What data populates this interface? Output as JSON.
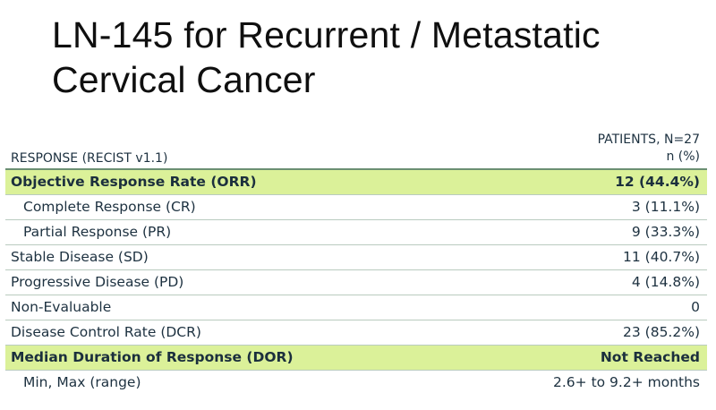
{
  "title": {
    "line1": "LN-145 for Recurrent / Metastatic",
    "line2": "Cervical Cancer"
  },
  "table": {
    "header": {
      "left": "RESPONSE (RECIST v1.1)",
      "right_line1": "PATIENTS, N=27",
      "right_line2": "n (%)"
    },
    "rows": [
      {
        "label": "Objective Response Rate (ORR)",
        "value": "12 (44.4%)",
        "highlight": true,
        "indent": false
      },
      {
        "label": "Complete Response (CR)",
        "value": "3 (11.1%)",
        "highlight": false,
        "indent": true
      },
      {
        "label": "Partial Response (PR)",
        "value": "9 (33.3%)",
        "highlight": false,
        "indent": true
      },
      {
        "label": "Stable Disease (SD)",
        "value": "11 (40.7%)",
        "highlight": false,
        "indent": false
      },
      {
        "label": "Progressive Disease (PD)",
        "value": "4 (14.8%)",
        "highlight": false,
        "indent": false
      },
      {
        "label": "Non-Evaluable",
        "value": "0",
        "highlight": false,
        "indent": false
      },
      {
        "label": "Disease Control Rate (DCR)",
        "value": "23 (85.2%)",
        "highlight": false,
        "indent": false
      },
      {
        "label": "Median Duration of Response (DOR)",
        "value": "Not Reached",
        "highlight": true,
        "indent": false
      },
      {
        "label": "Min, Max (range)",
        "value": "2.6+ to 9.2+ months",
        "highlight": false,
        "indent": true
      }
    ]
  },
  "colors": {
    "highlight": "#dbf199",
    "text": "#1d3140",
    "rule": "#6b8f72"
  }
}
